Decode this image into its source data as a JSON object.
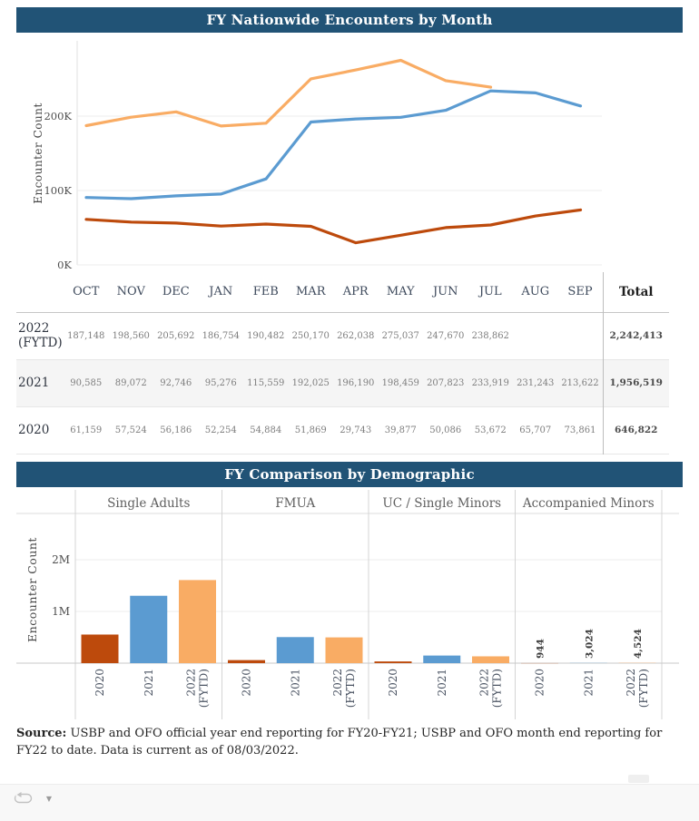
{
  "banner1": {
    "title": "FY Nationwide Encounters by Month"
  },
  "banner2": {
    "title": "FY Comparison by Demographic"
  },
  "colors": {
    "fy2020": "#BD4A0C",
    "fy2021": "#5B9BD1",
    "fy2022": "#F9AC64",
    "banner": "#215376"
  },
  "table": {
    "months": [
      "OCT",
      "NOV",
      "DEC",
      "JAN",
      "FEB",
      "MAR",
      "APR",
      "MAY",
      "JUN",
      "JUL",
      "AUG",
      "SEP"
    ],
    "total_header": "Total",
    "rows": [
      {
        "label": "2022 (FYTD)",
        "values": [
          "187,148",
          "198,560",
          "205,692",
          "186,754",
          "190,482",
          "250,170",
          "262,038",
          "275,037",
          "247,670",
          "238,862",
          "",
          ""
        ],
        "total": "2,242,413"
      },
      {
        "label": "2021",
        "values": [
          "90,585",
          "89,072",
          "92,746",
          "95,276",
          "115,559",
          "192,025",
          "196,190",
          "198,459",
          "207,823",
          "233,919",
          "231,243",
          "213,622"
        ],
        "total": "1,956,519"
      },
      {
        "label": "2020",
        "values": [
          "61,159",
          "57,524",
          "56,186",
          "52,254",
          "54,884",
          "51,869",
          "29,743",
          "39,877",
          "50,086",
          "53,672",
          "65,707",
          "73,861"
        ],
        "total": "646,822"
      }
    ]
  },
  "chart_data": [
    {
      "type": "line",
      "title": "FY Nationwide Encounters by Month",
      "xlabel": "",
      "ylabel": "Encounter Count",
      "x": [
        "OCT",
        "NOV",
        "DEC",
        "JAN",
        "FEB",
        "MAR",
        "APR",
        "MAY",
        "JUN",
        "JUL",
        "AUG",
        "SEP"
      ],
      "ylim": [
        0,
        300000
      ],
      "grid": true,
      "y_ticks": [
        {
          "label": "0K",
          "value": 0
        },
        {
          "label": "100K",
          "value": 100000
        },
        {
          "label": "200K",
          "value": 200000
        }
      ],
      "series": [
        {
          "name": "2022 (FYTD)",
          "color": "#F9AC64",
          "values": [
            187148,
            198560,
            205692,
            186754,
            190482,
            250170,
            262038,
            275037,
            247670,
            238862,
            null,
            null
          ]
        },
        {
          "name": "2021",
          "color": "#5B9BD1",
          "values": [
            90585,
            89072,
            92746,
            95276,
            115559,
            192025,
            196190,
            198459,
            207823,
            233919,
            231243,
            213622
          ]
        },
        {
          "name": "2020",
          "color": "#BD4A0C",
          "values": [
            61159,
            57524,
            56186,
            52254,
            54884,
            51869,
            29743,
            39877,
            50086,
            53672,
            65707,
            73861
          ]
        }
      ]
    },
    {
      "type": "bar",
      "title": "FY Comparison by Demographic",
      "ylabel": "Encounter Count",
      "ylim": [
        0,
        2900000
      ],
      "y_ticks": [
        {
          "label": "1M",
          "value": 1000000
        },
        {
          "label": "2M",
          "value": 2000000
        }
      ],
      "categories": [
        "2020",
        "2021",
        "2022 (FYTD)"
      ],
      "category_colors": [
        "#BD4A0C",
        "#5B9BD1",
        "#F9AC64"
      ],
      "panels": [
        {
          "name": "Single Adults",
          "values": [
            553000,
            1303000,
            1607000
          ]
        },
        {
          "name": "FMUA",
          "values": [
            59000,
            504000,
            498000
          ]
        },
        {
          "name": "UC / Single Minors",
          "values": [
            33000,
            147000,
            132000
          ]
        },
        {
          "name": "Accompanied Minors",
          "values": [
            944,
            3024,
            4524
          ],
          "value_labels": [
            "944",
            "3,024",
            "4,524"
          ]
        }
      ]
    }
  ],
  "source": {
    "label": "Source:",
    "text": " USBP and OFO official year end reporting for FY20-FY21; USBP and OFO month end reporting for FY22 to date. Data is current as of 08/03/2022."
  },
  "footer": {
    "refresh_icon": "refresh-icon",
    "dropdown_icon": "caret-down-icon",
    "dropdown_glyph": "▼"
  }
}
